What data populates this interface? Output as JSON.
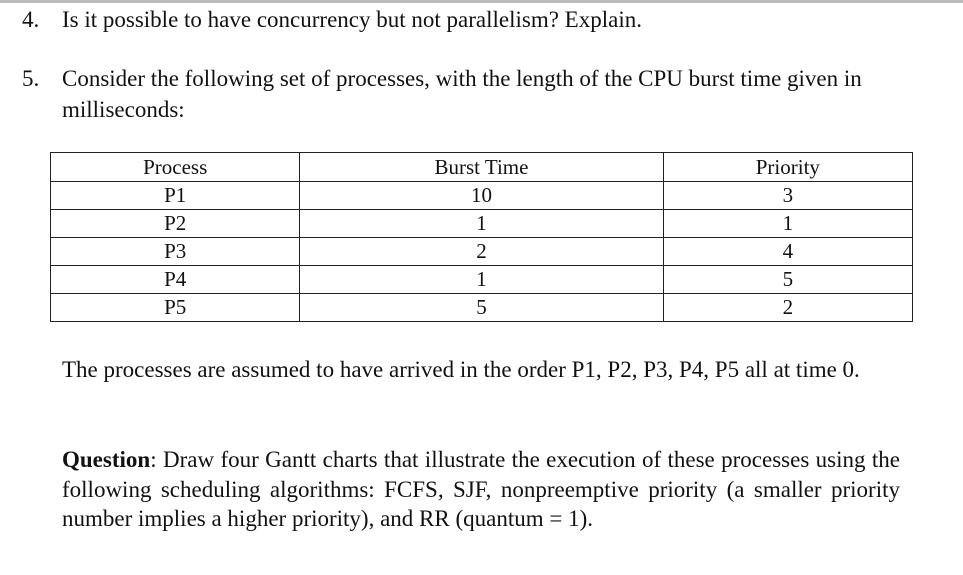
{
  "questions": [
    {
      "number": "4.",
      "text": "Is it possible to have concurrency but not parallelism? Explain."
    },
    {
      "number": "5.",
      "text": "Consider the following set of processes, with the length of the CPU burst time given in milliseconds:"
    }
  ],
  "table": {
    "headers": [
      "Process",
      "Burst Time",
      "Priority"
    ],
    "rows": [
      [
        "P1",
        "10",
        "3"
      ],
      [
        "P2",
        "1",
        "1"
      ],
      [
        "P3",
        "2",
        "4"
      ],
      [
        "P4",
        "1",
        "5"
      ],
      [
        "P5",
        "5",
        "2"
      ]
    ]
  },
  "arrival_note": "The processes are assumed to have arrived in the order P1, P2, P3, P4, P5 all at time 0.",
  "question_label": "Question",
  "question_text": ": Draw four Gantt charts that illustrate the execution of these processes using the following scheduling algorithms: FCFS, SJF, nonpreemptive priority (a smaller priority number implies a higher priority), and RR (quantum = 1)."
}
